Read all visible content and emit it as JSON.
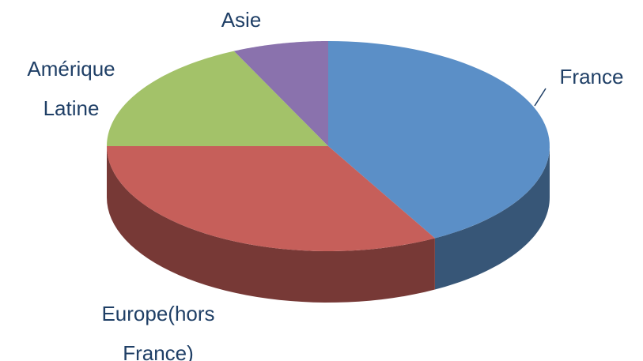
{
  "chart_data": {
    "type": "pie",
    "categories": [
      "France",
      "Europe(hors France)",
      "Amérique Latine",
      "Asie"
    ],
    "values": [
      42,
      33,
      18,
      7
    ],
    "colors": [
      "#5b8fc7",
      "#c65f5a",
      "#a3c269",
      "#8a72ad"
    ]
  }
}
